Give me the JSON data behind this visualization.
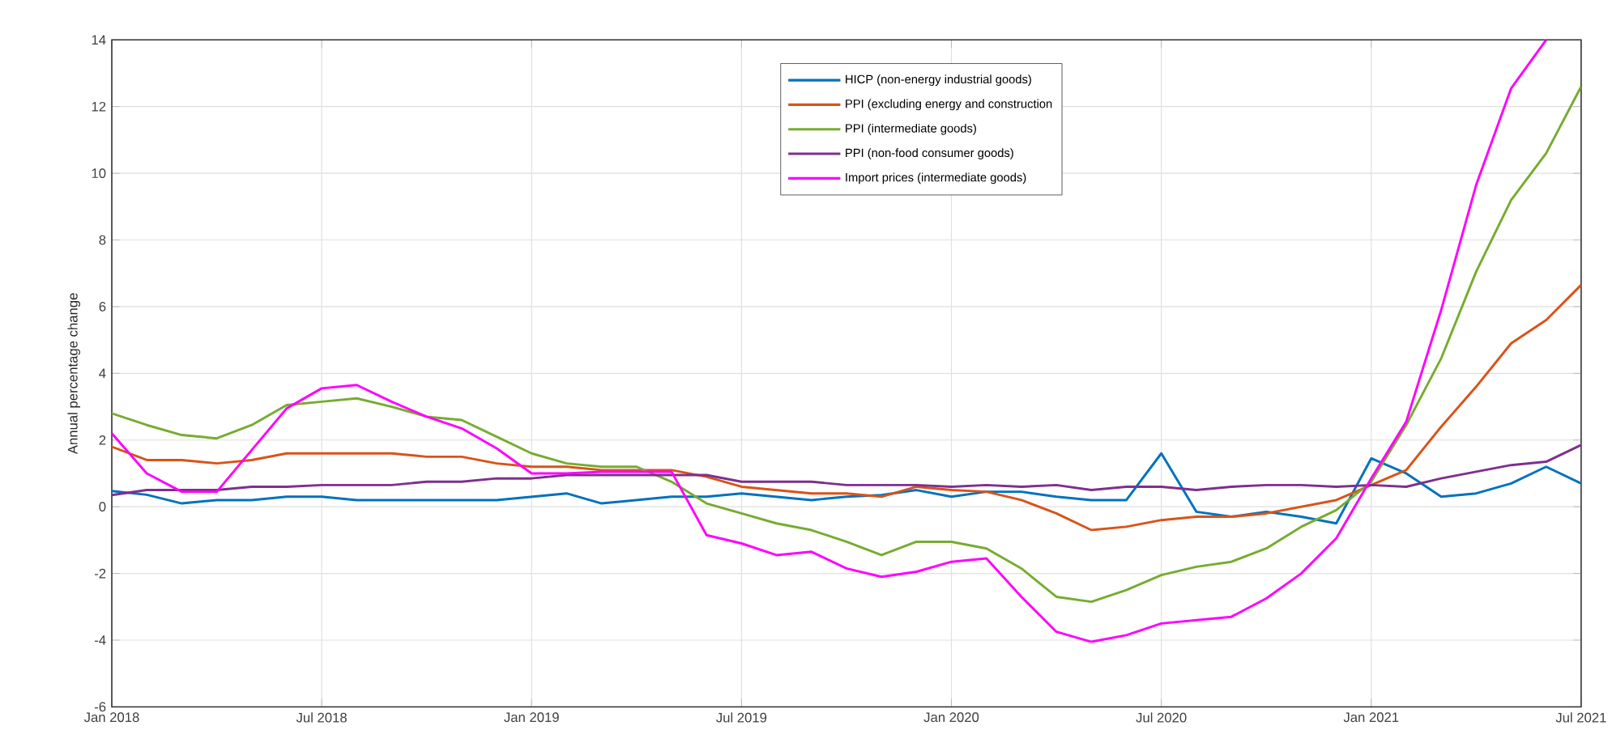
{
  "chart_data": {
    "type": "line",
    "ylabel": "Annual percentage change",
    "x": [
      "2018-01",
      "2018-02",
      "2018-03",
      "2018-04",
      "2018-05",
      "2018-06",
      "2018-07",
      "2018-08",
      "2018-09",
      "2018-10",
      "2018-11",
      "2018-12",
      "2019-01",
      "2019-02",
      "2019-03",
      "2019-04",
      "2019-05",
      "2019-06",
      "2019-07",
      "2019-08",
      "2019-09",
      "2019-10",
      "2019-11",
      "2019-12",
      "2020-01",
      "2020-02",
      "2020-03",
      "2020-04",
      "2020-05",
      "2020-06",
      "2020-07",
      "2020-08",
      "2020-09",
      "2020-10",
      "2020-11",
      "2020-12",
      "2021-01",
      "2021-02",
      "2021-03",
      "2021-04",
      "2021-05",
      "2021-06",
      "2021-07"
    ],
    "series": [
      {
        "name": "HICP (non-energy industrial goods)",
        "color": "#0072bd",
        "values": [
          0.47,
          0.36,
          0.1,
          0.2,
          0.2,
          0.3,
          0.3,
          0.2,
          0.2,
          0.2,
          0.2,
          0.2,
          0.3,
          0.4,
          0.1,
          0.2,
          0.3,
          0.3,
          0.4,
          0.3,
          0.2,
          0.3,
          0.35,
          0.5,
          0.3,
          0.45,
          0.45,
          0.3,
          0.2,
          0.2,
          1.6,
          -0.15,
          -0.3,
          -0.15,
          -0.3,
          -0.5,
          1.45,
          1.0,
          0.3,
          0.4,
          0.7,
          1.2,
          0.7
        ]
      },
      {
        "name": "PPI (excluding energy and construction",
        "color": "#d95319",
        "values": [
          1.8,
          1.4,
          1.4,
          1.3,
          1.4,
          1.6,
          1.6,
          1.6,
          1.6,
          1.5,
          1.5,
          1.3,
          1.2,
          1.2,
          1.1,
          1.1,
          1.1,
          0.9,
          0.6,
          0.5,
          0.4,
          0.4,
          0.3,
          0.6,
          0.5,
          0.45,
          0.2,
          -0.2,
          -0.7,
          -0.6,
          -0.4,
          -0.3,
          -0.3,
          -0.2,
          0,
          0.2,
          0.65,
          1.1,
          2.4,
          3.6,
          4.9,
          5.6,
          6.65
        ]
      },
      {
        "name": "PPI (intermediate goods)",
        "color": "#77ac30",
        "values": [
          2.8,
          2.45,
          2.15,
          2.05,
          2.45,
          3.05,
          3.15,
          3.25,
          3.0,
          2.7,
          2.6,
          2.1,
          1.6,
          1.3,
          1.2,
          1.2,
          0.75,
          0.1,
          -0.2,
          -0.5,
          -0.7,
          -1.05,
          -1.45,
          -1.05,
          -1.05,
          -1.25,
          -1.85,
          -2.7,
          -2.85,
          -2.5,
          -2.05,
          -1.8,
          -1.65,
          -1.25,
          -0.6,
          -0.1,
          0.75,
          2.45,
          4.45,
          7.05,
          9.2,
          10.6,
          12.6
        ]
      },
      {
        "name": "PPI (non-food consumer goods)",
        "color": "#7e2f8e",
        "values": [
          0.35,
          0.5,
          0.5,
          0.5,
          0.6,
          0.6,
          0.65,
          0.65,
          0.65,
          0.75,
          0.75,
          0.85,
          0.85,
          0.95,
          0.95,
          0.95,
          0.95,
          0.95,
          0.75,
          0.75,
          0.75,
          0.65,
          0.65,
          0.65,
          0.6,
          0.65,
          0.6,
          0.65,
          0.5,
          0.6,
          0.6,
          0.5,
          0.6,
          0.65,
          0.65,
          0.6,
          0.65,
          0.6,
          0.85,
          1.05,
          1.25,
          1.35,
          1.85
        ]
      },
      {
        "name": "Import prices (intermediate goods)",
        "color": "#ff00ff",
        "values": [
          2.2,
          1.0,
          0.45,
          0.45,
          1.7,
          2.95,
          3.55,
          3.65,
          3.15,
          2.7,
          2.35,
          1.75,
          1.0,
          1.0,
          1.05,
          1.05,
          1.05,
          -0.85,
          -1.1,
          -1.45,
          -1.35,
          -1.85,
          -2.1,
          -1.95,
          -1.65,
          -1.55,
          -2.7,
          -3.75,
          -4.05,
          -3.85,
          -3.5,
          -3.4,
          -3.3,
          -2.75,
          -2.0,
          -0.95,
          0.85,
          2.55,
          5.9,
          9.65,
          12.55,
          14.0,
          null
        ]
      }
    ],
    "xlim": [
      "2018-01",
      "2021-07"
    ],
    "xticks": [
      {
        "value": "2018-01",
        "label": "Jan 2018"
      },
      {
        "value": "2018-07",
        "label": "Jul 2018"
      },
      {
        "value": "2019-01",
        "label": "Jan 2019"
      },
      {
        "value": "2019-07",
        "label": "Jul 2019"
      },
      {
        "value": "2020-01",
        "label": "Jan 2020"
      },
      {
        "value": "2020-07",
        "label": "Jul 2020"
      },
      {
        "value": "2021-01",
        "label": "Jan 2021"
      },
      {
        "value": "2021-07",
        "label": "Jul 2021"
      }
    ],
    "ylim": [
      -6,
      14
    ],
    "yticks": [
      -6,
      -4,
      -2,
      0,
      2,
      4,
      6,
      8,
      10,
      12,
      14
    ],
    "grid": true,
    "legend": "top",
    "marker": "none",
    "line_style": "solid"
  }
}
